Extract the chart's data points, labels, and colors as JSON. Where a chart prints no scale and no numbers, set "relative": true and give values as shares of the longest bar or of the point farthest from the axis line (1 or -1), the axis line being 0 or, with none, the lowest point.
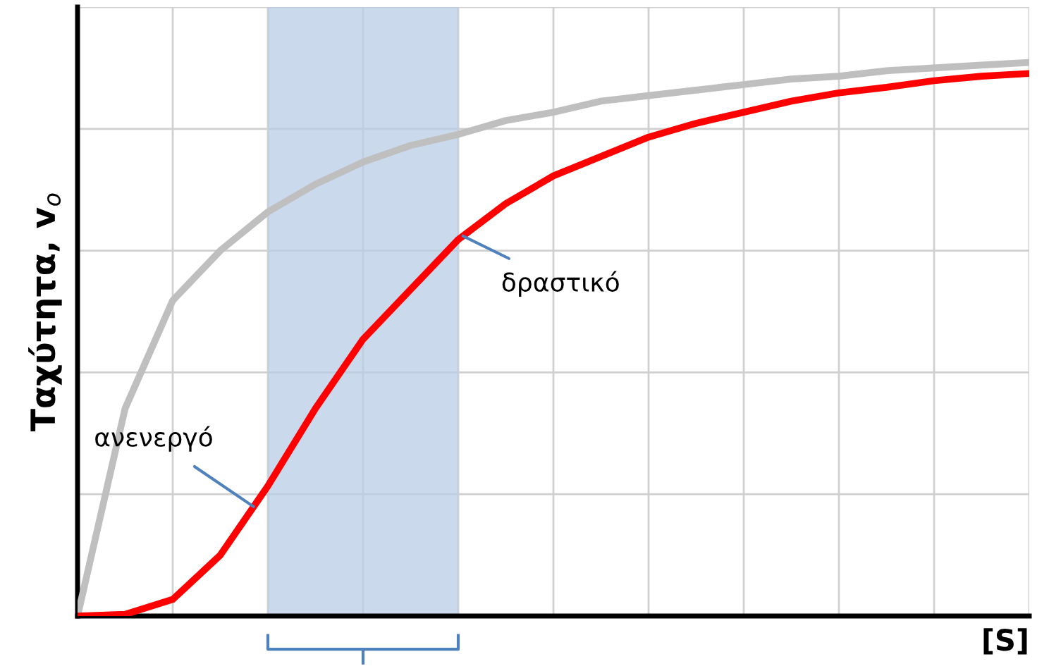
{
  "chart_data": {
    "type": "line",
    "relative": true,
    "xlabel": "[S]",
    "ylabel": "Ταχύτητα, v$_{o}$",
    "categories": [
      null,
      null,
      null,
      null,
      null,
      null,
      null,
      null,
      null,
      null,
      null,
      null,
      null,
      null,
      null,
      null,
      null,
      null,
      null,
      null,
      null
    ],
    "series": [
      {
        "color": "#bfbfbf",
        "values": [
          0,
          0.375,
          0.57,
          0.66,
          0.73,
          0.78,
          0.82,
          0.85,
          0.87,
          0.895,
          0.91,
          0.93,
          0.94,
          0.95,
          0.96,
          0.97,
          0.975,
          0.985,
          0.99,
          0.995,
          1.0
        ]
      },
      {
        "color": "#ff0000",
        "values": [
          0,
          0.003,
          0.03,
          0.11,
          0.235,
          0.375,
          0.5,
          0.59,
          0.68,
          0.745,
          0.795,
          0.83,
          0.865,
          0.89,
          0.91,
          0.93,
          0.945,
          0.955,
          0.967,
          0.975,
          0.98
        ]
      }
    ],
    "annotations": [
      "ανενεργό",
      "δραστικό"
    ],
    "grid": true,
    "marker": "none",
    "line_style": "solid"
  }
}
